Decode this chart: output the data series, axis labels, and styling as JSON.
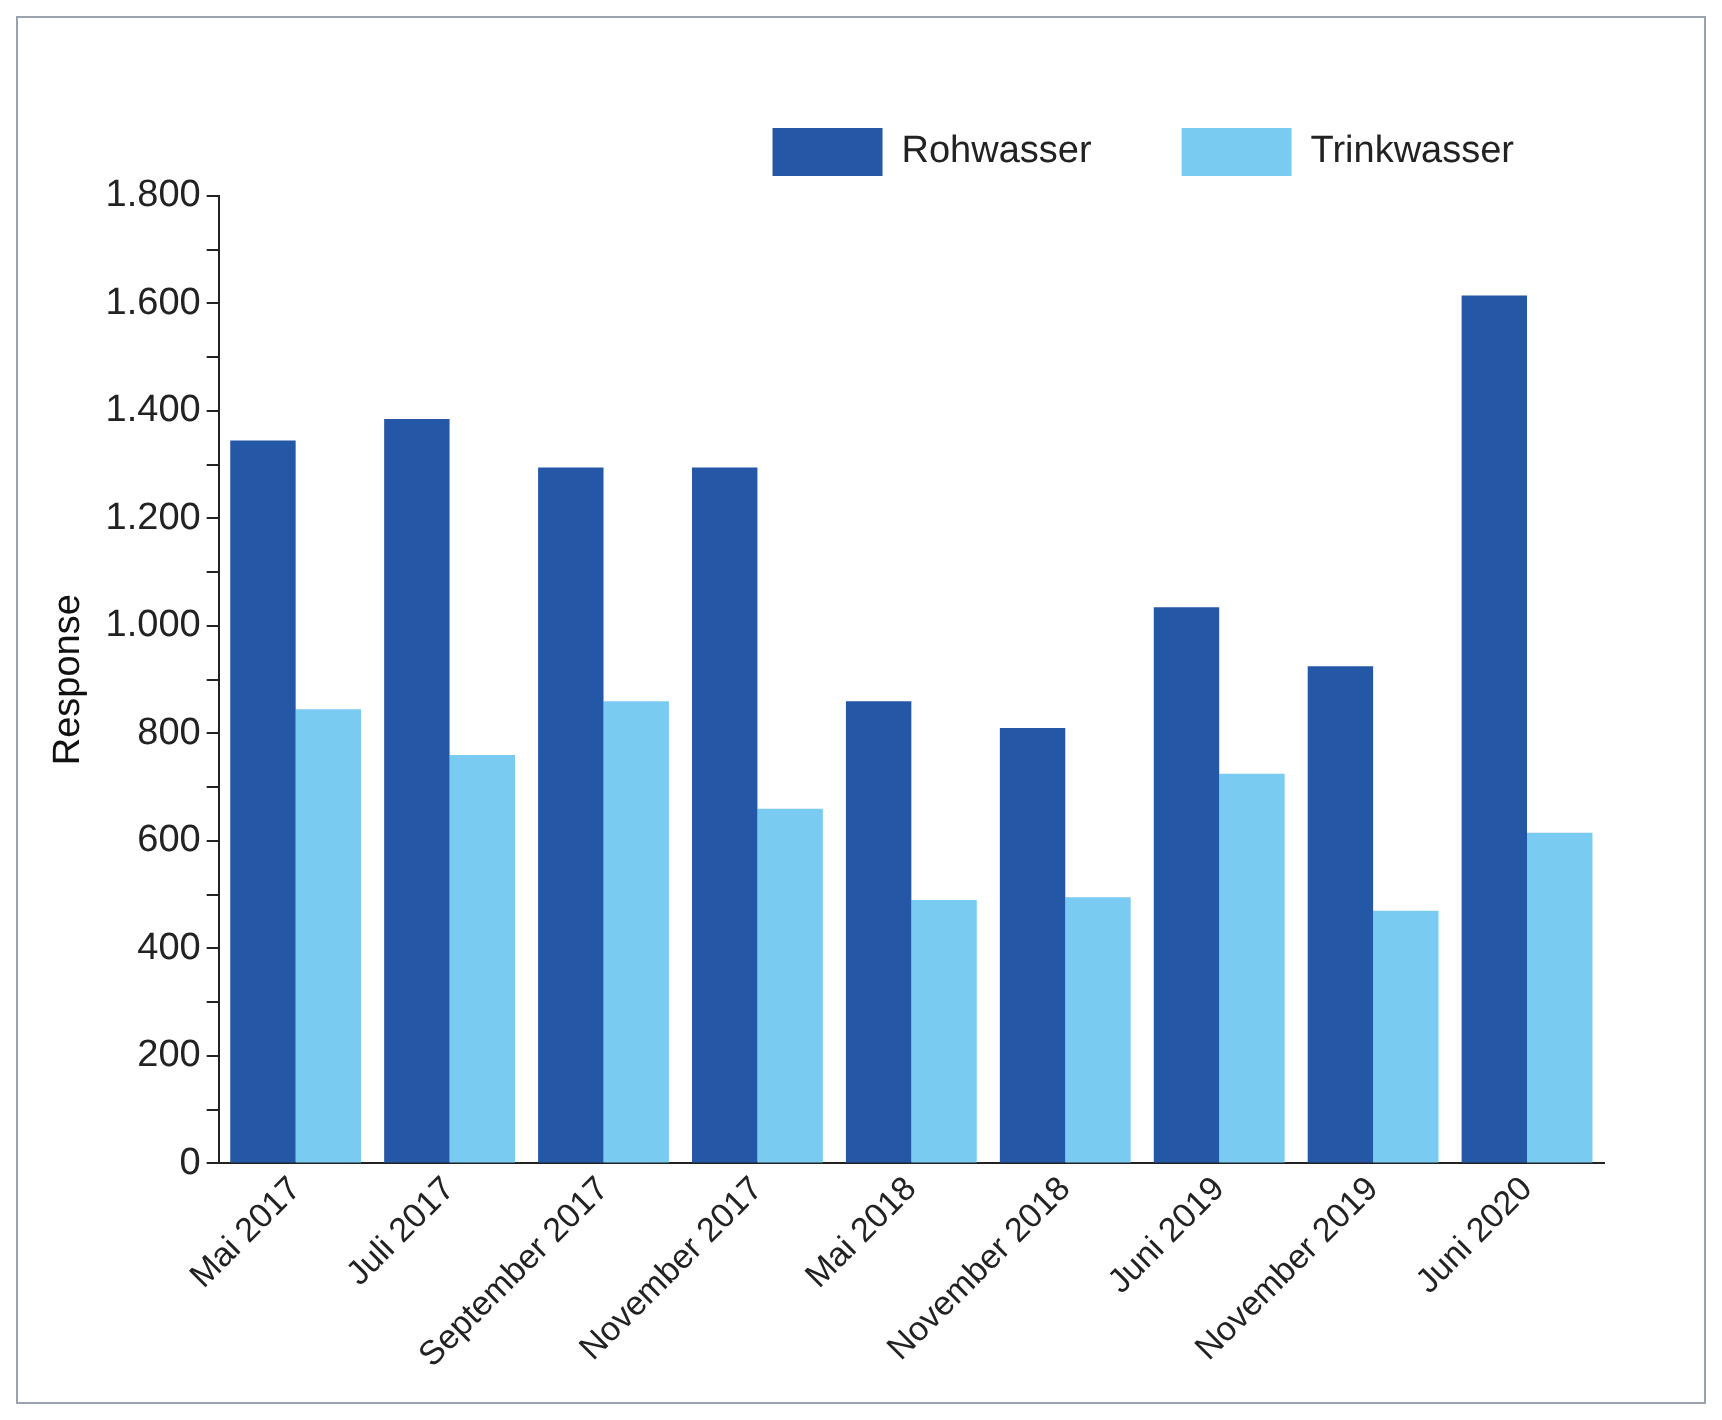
{
  "chart_data": {
    "type": "bar",
    "ylabel": "Response",
    "categories": [
      "Mai 2017",
      "Juli 2017",
      "September 2017",
      "November 2017",
      "Mai 2018",
      "November 2018",
      "Juni 2019",
      "November 2019",
      "Juni 2020"
    ],
    "series": [
      {
        "name": "Rohwasser",
        "color": "#2557a7",
        "values": [
          1345,
          1385,
          1295,
          1295,
          860,
          810,
          1035,
          925,
          1615
        ]
      },
      {
        "name": "Trinkwasser",
        "color": "#79cbf2",
        "values": [
          845,
          760,
          860,
          660,
          490,
          495,
          725,
          470,
          615
        ]
      }
    ],
    "ylim": [
      0,
      1800
    ],
    "yticks": [
      0,
      {
        "value": 100,
        "label": null
      },
      200,
      {
        "value": 300,
        "label": null
      },
      400,
      {
        "value": 500,
        "label": null
      },
      600,
      {
        "value": 700,
        "label": null
      },
      800,
      {
        "value": 900,
        "label": null
      },
      {
        "value": 1000,
        "label": "1.000"
      },
      {
        "value": 1100,
        "label": null
      },
      {
        "value": 1200,
        "label": "1.200"
      },
      {
        "value": 1300,
        "label": null
      },
      {
        "value": 1400,
        "label": "1.400"
      },
      {
        "value": 1500,
        "label": null
      },
      {
        "value": 1600,
        "label": "1.600"
      },
      {
        "value": 1700,
        "label": null
      },
      {
        "value": 1800,
        "label": "1.800"
      }
    ],
    "grid": false,
    "legend": "top right"
  }
}
